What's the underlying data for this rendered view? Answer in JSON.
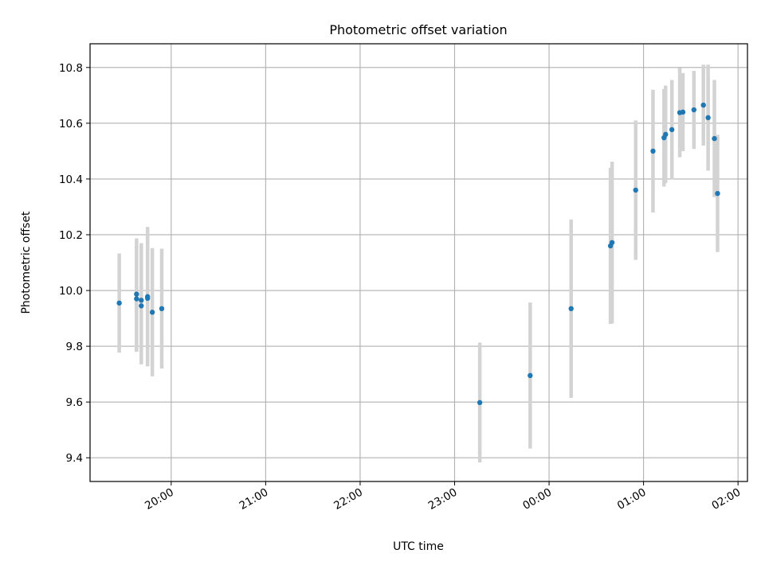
{
  "chart_data": {
    "type": "scatter",
    "title": "Photometric offset variation",
    "xlabel": "UTC time",
    "ylabel": "Photometric offset",
    "x_axis_type": "time",
    "x_range_hours": [
      19.141,
      26.1
    ],
    "ylim": [
      9.315,
      10.885
    ],
    "x_ticks": [
      "20:00",
      "21:00",
      "22:00",
      "23:00",
      "00:00",
      "01:00",
      "02:00"
    ],
    "x_tick_hours": [
      20,
      21,
      22,
      23,
      24,
      25,
      26
    ],
    "y_ticks": [
      9.4,
      9.6,
      9.8,
      10.0,
      10.2,
      10.4,
      10.6,
      10.8
    ],
    "y_tick_labels": [
      "9.4",
      "9.6",
      "9.8",
      "10.0",
      "10.2",
      "10.4",
      "10.6",
      "10.8"
    ],
    "grid": true,
    "marker_color": "#1f77b4",
    "errorbar_color": "#d3d3d3",
    "points": [
      {
        "x": "19:27",
        "y": 9.955,
        "err": 0.178
      },
      {
        "x": "19:38",
        "y": 9.987,
        "err": 0.2
      },
      {
        "x": "19:38",
        "y": 9.97,
        "err": 0.19
      },
      {
        "x": "19:41",
        "y": 9.945,
        "err": 0.21
      },
      {
        "x": "19:41",
        "y": 9.965,
        "err": 0.205
      },
      {
        "x": "19:45",
        "y": 9.978,
        "err": 0.25
      },
      {
        "x": "19:45",
        "y": 9.972,
        "err": 0.24
      },
      {
        "x": "19:48",
        "y": 9.922,
        "err": 0.23
      },
      {
        "x": "19:54",
        "y": 9.935,
        "err": 0.215
      },
      {
        "x": "23:16",
        "y": 9.598,
        "err": 0.215
      },
      {
        "x": "23:48",
        "y": 9.695,
        "err": 0.262
      },
      {
        "x": "00:14",
        "y": 9.935,
        "err": 0.32
      },
      {
        "x": "00:39",
        "y": 10.16,
        "err": 0.28
      },
      {
        "x": "00:40",
        "y": 10.172,
        "err": 0.29
      },
      {
        "x": "00:55",
        "y": 10.36,
        "err": 0.25
      },
      {
        "x": "01:06",
        "y": 10.5,
        "err": 0.22
      },
      {
        "x": "01:13",
        "y": 10.548,
        "err": 0.175
      },
      {
        "x": "01:14",
        "y": 10.56,
        "err": 0.175
      },
      {
        "x": "01:18",
        "y": 10.577,
        "err": 0.178
      },
      {
        "x": "01:23",
        "y": 10.638,
        "err": 0.16
      },
      {
        "x": "01:25",
        "y": 10.64,
        "err": 0.14
      },
      {
        "x": "01:32",
        "y": 10.648,
        "err": 0.14
      },
      {
        "x": "01:38",
        "y": 10.665,
        "err": 0.145
      },
      {
        "x": "01:41",
        "y": 10.62,
        "err": 0.19
      },
      {
        "x": "01:45",
        "y": 10.545,
        "err": 0.21
      },
      {
        "x": "01:47",
        "y": 10.348,
        "err": 0.21
      }
    ]
  }
}
